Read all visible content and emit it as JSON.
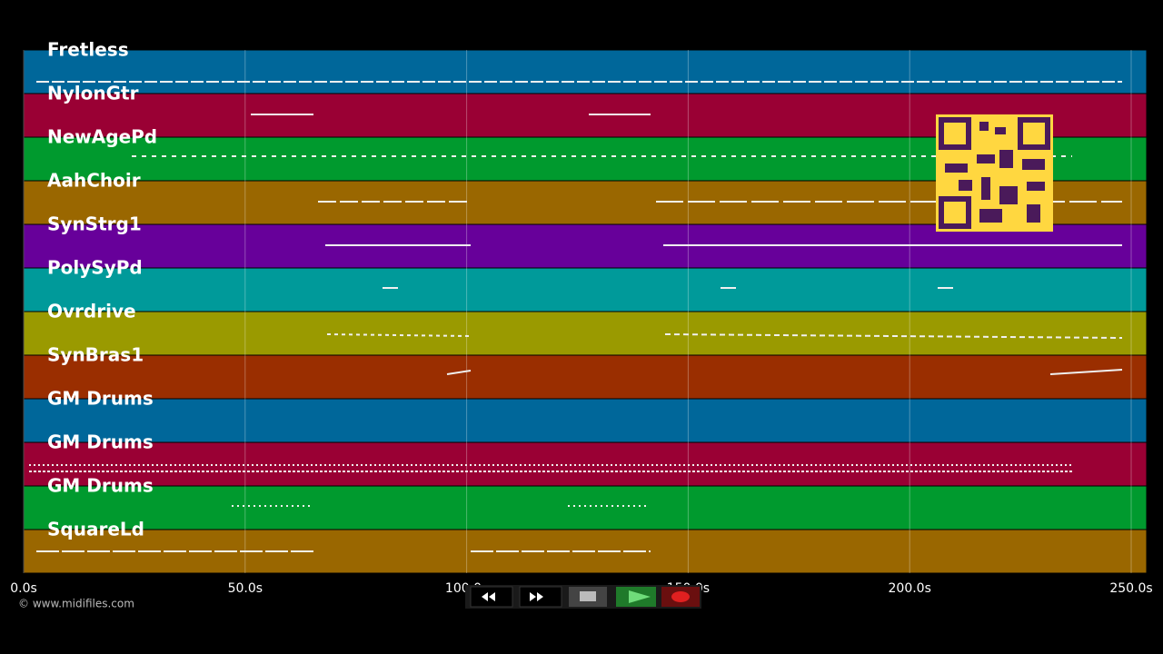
{
  "tracks": [
    {
      "name": "Fretless",
      "color": "#00679a"
    },
    {
      "name": "NylonGtr",
      "color": "#9a0034"
    },
    {
      "name": "NewAgePd",
      "color": "#009a2e"
    },
    {
      "name": "AahChoir",
      "color": "#9a6700"
    },
    {
      "name": "SynStrg1",
      "color": "#67009a"
    },
    {
      "name": "PolySyPd",
      "color": "#009a9a"
    },
    {
      "name": "Ovrdrive",
      "color": "#9a9a00"
    },
    {
      "name": "SynBras1",
      "color": "#9a2e00"
    },
    {
      "name": "GM Drums",
      "color": "#00679a"
    },
    {
      "name": "GM Drums",
      "color": "#9a0034"
    },
    {
      "name": "GM Drums",
      "color": "#009a2e"
    },
    {
      "name": "SquareLd",
      "color": "#9a6700"
    }
  ],
  "time_axis": {
    "xlim": [
      0,
      253.5
    ],
    "ticks": [
      {
        "value": 0,
        "label": "0.0s"
      },
      {
        "value": 50,
        "label": "50.0s"
      },
      {
        "value": 100,
        "label": "100.0s"
      },
      {
        "value": 150,
        "label": "150.0s"
      },
      {
        "value": 200,
        "label": "200.0s"
      },
      {
        "value": 250,
        "label": "250.0s"
      }
    ]
  },
  "footer": {
    "copyright": "© www.midifiles.com"
  }
}
